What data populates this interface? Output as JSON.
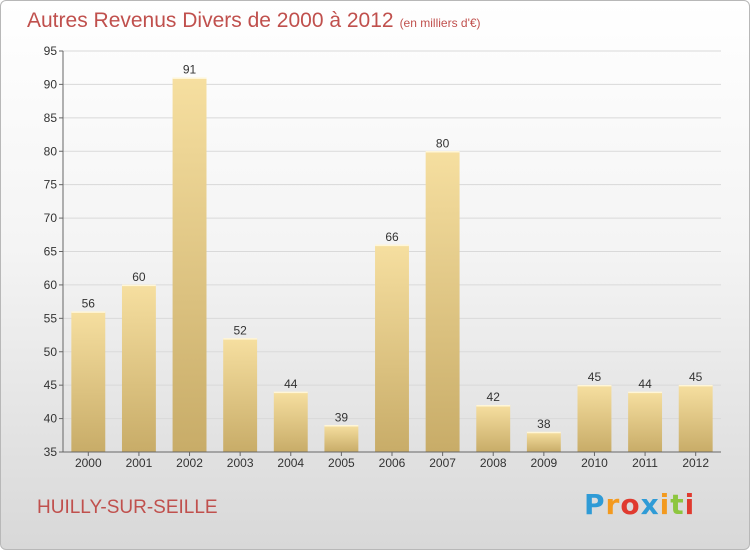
{
  "title": "Autres Revenus Divers de 2000 à 2012",
  "subtitle": "(en milliers d'€)",
  "commune": "HUILLY-SUR-SEILLE",
  "logo": {
    "letters": [
      "P",
      "r",
      "o",
      "x",
      "i",
      "t",
      "i"
    ],
    "colors": [
      "#2f9bd6",
      "#f39a1f",
      "#e03a2f",
      "#2f9bd6",
      "#f39a1f",
      "#8dc63f",
      "#e03a2f"
    ]
  },
  "colors": {
    "title": "#c0504d",
    "bar_light": "#f6dfa0",
    "bar_dark": "#c8ac68",
    "grid": "#d9d9d9",
    "axis": "#666666"
  },
  "chart_data": {
    "type": "bar",
    "categories": [
      "2000",
      "2001",
      "2002",
      "2003",
      "2004",
      "2005",
      "2006",
      "2007",
      "2008",
      "2009",
      "2010",
      "2011",
      "2012"
    ],
    "values": [
      56,
      60,
      91,
      52,
      44,
      39,
      66,
      80,
      42,
      38,
      45,
      44,
      45
    ],
    "ylim": [
      35,
      95
    ],
    "yticks": [
      35,
      40,
      45,
      50,
      55,
      60,
      65,
      70,
      75,
      80,
      85,
      90,
      95
    ],
    "grid": true,
    "data_labels": true
  }
}
